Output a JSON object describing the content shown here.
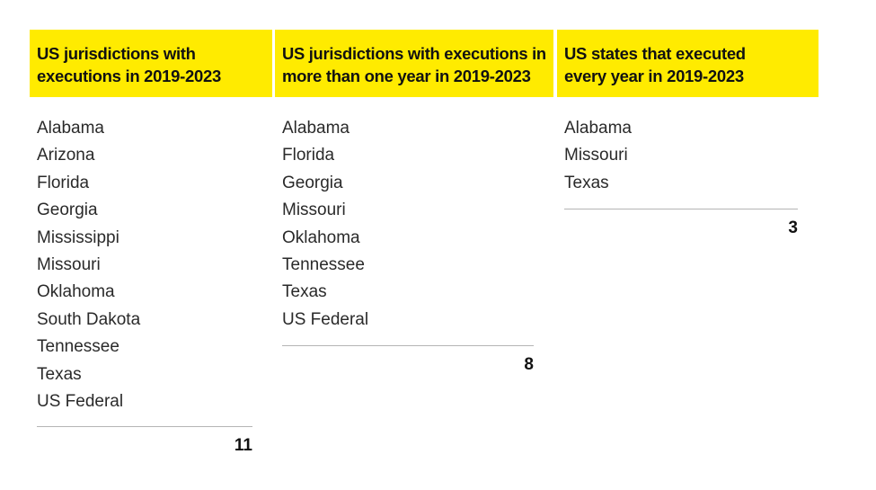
{
  "columns": [
    {
      "header": [
        "US jurisdictions with",
        "executions in 2019-2023"
      ],
      "items": [
        "Alabama",
        "Arizona",
        "Florida",
        "Georgia",
        "Mississippi",
        "Missouri",
        "Oklahoma",
        "South Dakota",
        "Tennessee",
        "Texas",
        "US Federal"
      ],
      "total": "11"
    },
    {
      "header": [
        "US jurisdictions with executions in",
        "more than one year in 2019-2023"
      ],
      "items": [
        "Alabama",
        "Florida",
        "Georgia",
        "Missouri",
        "Oklahoma",
        "Tennessee",
        "Texas",
        "US Federal"
      ],
      "total": "8"
    },
    {
      "header": [
        "US states that executed",
        "every year in 2019-2023"
      ],
      "items": [
        "Alabama",
        "Missouri",
        "Texas"
      ],
      "total": "3"
    }
  ],
  "colors": {
    "header_background": "#ffeb00",
    "text": "#222222",
    "rule": "#b5b5b5"
  }
}
